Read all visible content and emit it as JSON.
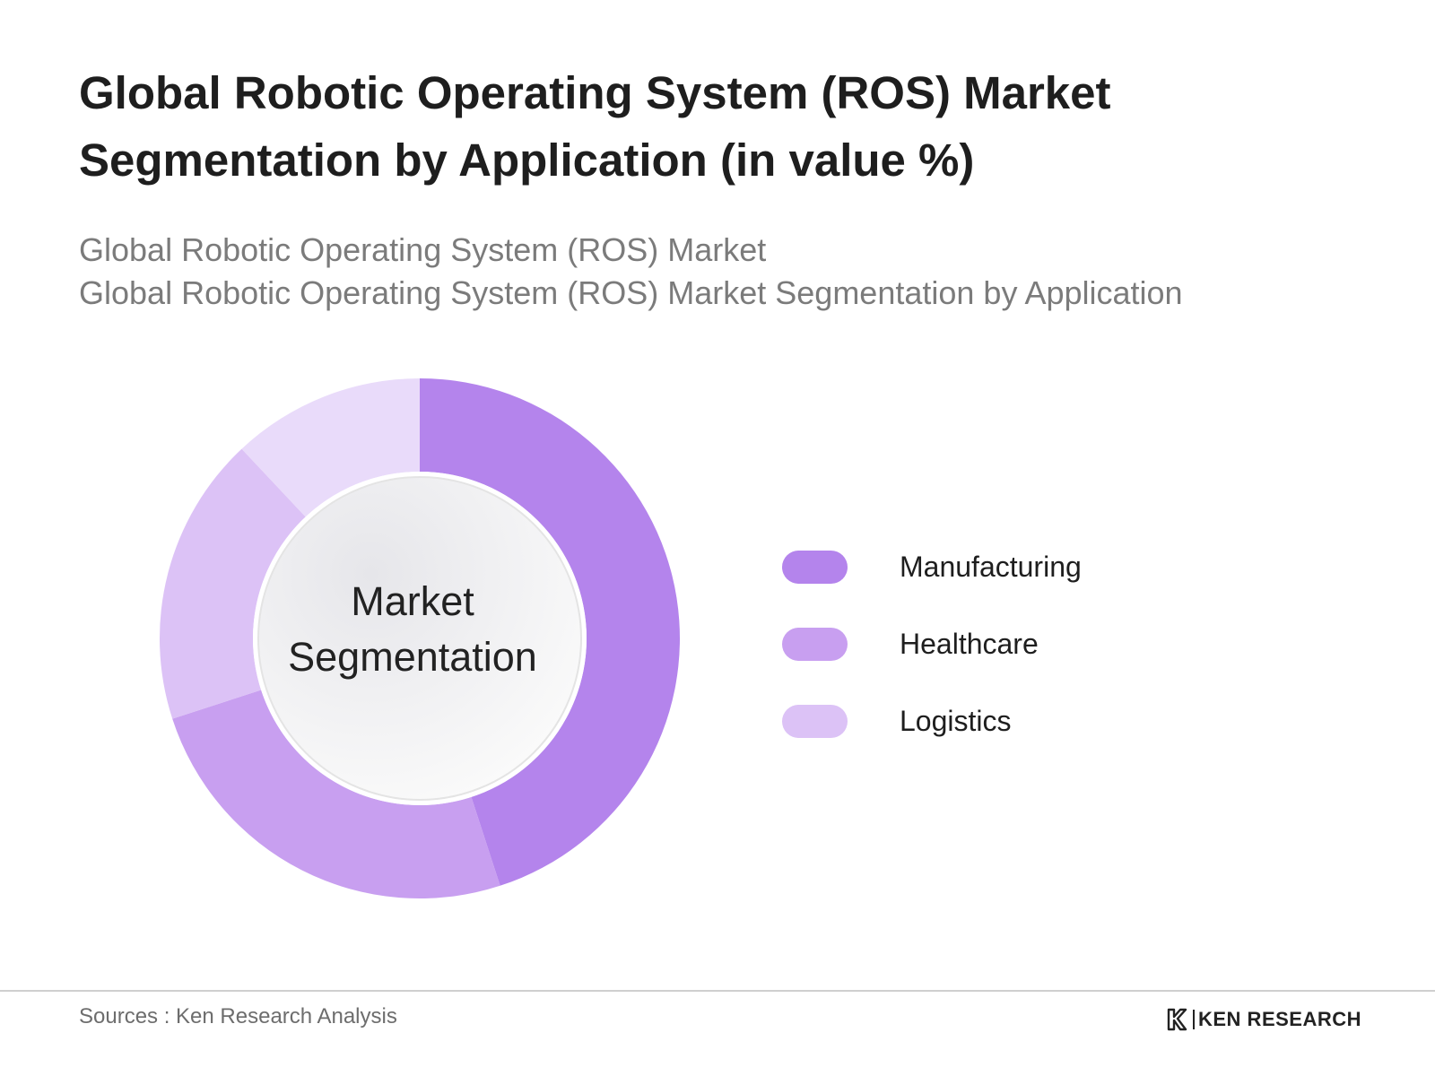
{
  "header": {
    "title_line1": "Global Robotic Operating System (ROS) Market",
    "title_line2": "Segmentation by Application (in value %)",
    "subtitle_line1": "Global Robotic Operating System (ROS) Market",
    "subtitle_line2": "Global Robotic Operating System (ROS) Market Segmentation by Application"
  },
  "chart_data": {
    "type": "pie",
    "style": "donut",
    "center_label_line1": "Market",
    "center_label_line2": "Segmentation",
    "categories": [
      "Manufacturing",
      "Healthcare",
      "Logistics"
    ],
    "slices": [
      {
        "label": "Manufacturing",
        "value": 45,
        "color": "#b484ec"
      },
      {
        "label": "Healthcare",
        "value": 25,
        "color": "#c89ff0"
      },
      {
        "label": "Logistics",
        "value": 18,
        "color": "#dcc2f6",
        "segment": "lower"
      },
      {
        "label": "Logistics",
        "value": 12,
        "color": "#e9dbfa",
        "segment": "upper"
      }
    ],
    "legend_position": "right"
  },
  "legend": {
    "items": [
      {
        "label": "Manufacturing",
        "color": "#b484ec"
      },
      {
        "label": "Healthcare",
        "color": "#c89ff0"
      },
      {
        "label": "Logistics",
        "color": "#dcc2f6"
      }
    ]
  },
  "footer": {
    "source": "Sources : Ken Research Analysis",
    "brand": "KEN RESEARCH"
  }
}
